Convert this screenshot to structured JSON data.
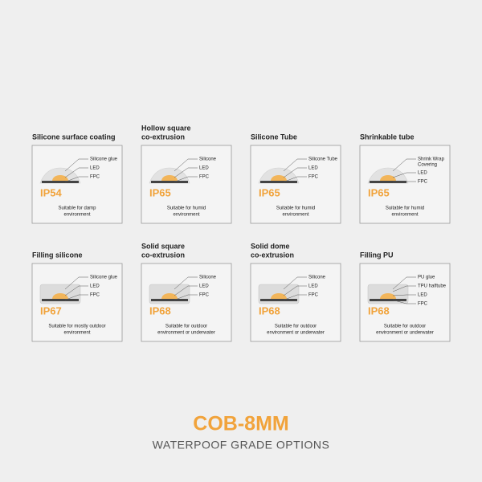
{
  "cards": [
    {
      "title": [
        "Silicone surface coating"
      ],
      "labels": [
        [
          "Silicone glue"
        ],
        [
          "LED"
        ],
        [
          "FPC"
        ]
      ],
      "rating": "IP54",
      "description": [
        "Suitable for damp",
        "environment"
      ]
    },
    {
      "title": [
        "Hollow square",
        "co-extrusion"
      ],
      "labels": [
        [
          "Silicone"
        ],
        [
          "LED"
        ],
        [
          "FPC"
        ]
      ],
      "rating": "IP65",
      "description": [
        "Suitable for humid",
        "environment"
      ]
    },
    {
      "title": [
        "Silicone Tube"
      ],
      "labels": [
        [
          "Silicone Tube"
        ],
        [
          "LED"
        ],
        [
          "FPC"
        ]
      ],
      "rating": "IP65",
      "description": [
        "Suitable for humid",
        "environment"
      ]
    },
    {
      "title": [
        "Shrinkable tube"
      ],
      "labels": [
        [
          "Shrink Wrap",
          "Covering"
        ],
        [
          "LED"
        ],
        [
          "FPC"
        ]
      ],
      "rating": "IP65",
      "description": [
        "Suitable for humid",
        "environment"
      ]
    },
    {
      "title": [
        "Filling silicone"
      ],
      "labels": [
        [
          "Silicone glue"
        ],
        [
          "LED"
        ],
        [
          "FPC"
        ]
      ],
      "rating": "IP67",
      "description": [
        "Suitable for mostly outdoor",
        "environment"
      ]
    },
    {
      "title": [
        "Solid square",
        "co-extrusion"
      ],
      "labels": [
        [
          "Silicone"
        ],
        [
          "LED"
        ],
        [
          "FPC"
        ]
      ],
      "rating": "IP68",
      "description": [
        "Suitable for outdoor",
        "environment or underwater"
      ]
    },
    {
      "title": [
        "Solid dome",
        "co-extrusion"
      ],
      "labels": [
        [
          "Silicone"
        ],
        [
          "LED"
        ],
        [
          "FPC"
        ]
      ],
      "rating": "IP68",
      "description": [
        "Suitable for outdoor",
        "environment or underwater"
      ]
    },
    {
      "title": [
        "Filling PU"
      ],
      "labels": [
        [
          "PU glue"
        ],
        [
          "TPU halftube"
        ],
        [
          "LED"
        ],
        [
          "FPC"
        ]
      ],
      "rating": "IP68",
      "description": [
        "Suitable for outdoor",
        "environment or underwater"
      ]
    }
  ],
  "footer": {
    "title": "COB-8MM",
    "subtitle": "WATERPOOF GRADE OPTIONS"
  }
}
